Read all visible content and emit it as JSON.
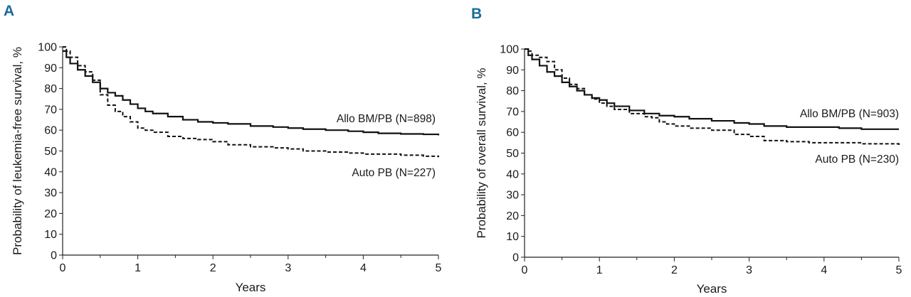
{
  "chart_data": [
    {
      "type": "line",
      "panel_label": "A",
      "title": "",
      "xlabel": "Years",
      "ylabel": "Probability of leukemia-free survival, %",
      "xlim": [
        0,
        5
      ],
      "ylim": [
        0,
        100
      ],
      "xticks": [
        0,
        1,
        2,
        3,
        4,
        5
      ],
      "yticks": [
        0,
        10,
        20,
        30,
        40,
        50,
        60,
        70,
        80,
        90,
        100
      ],
      "grid": false,
      "series": [
        {
          "name": "Allo BM/PB (N=898)",
          "style": "solid",
          "x": [
            0,
            0.05,
            0.1,
            0.2,
            0.3,
            0.4,
            0.5,
            0.6,
            0.7,
            0.8,
            0.9,
            1.0,
            1.1,
            1.2,
            1.4,
            1.6,
            1.8,
            2.0,
            2.2,
            2.5,
            2.8,
            3.0,
            3.2,
            3.5,
            3.8,
            4.0,
            4.2,
            4.5,
            4.8,
            5.0
          ],
          "y": [
            98,
            95,
            92,
            89,
            86,
            83,
            80,
            78,
            76.5,
            74.5,
            72.5,
            70.5,
            69,
            68,
            66.5,
            65,
            64,
            63.5,
            63,
            62,
            61.5,
            61,
            60.5,
            60,
            59.5,
            59,
            58.5,
            58.2,
            58,
            57.5
          ]
        },
        {
          "name": "Auto PB (N=227)",
          "style": "dashed",
          "x": [
            0,
            0.05,
            0.1,
            0.2,
            0.3,
            0.4,
            0.5,
            0.6,
            0.7,
            0.8,
            0.9,
            1.0,
            1.1,
            1.2,
            1.4,
            1.6,
            1.8,
            2.0,
            2.2,
            2.5,
            2.8,
            3.0,
            3.2,
            3.5,
            3.8,
            4.0,
            4.2,
            4.5,
            4.8,
            5.0
          ],
          "y": [
            100,
            98,
            95,
            91,
            88,
            84,
            77,
            72,
            69,
            66.5,
            64,
            61,
            60,
            59,
            57,
            56,
            55.5,
            54.5,
            53,
            52,
            51.5,
            51,
            50,
            49.5,
            49,
            48.5,
            48.5,
            48,
            47.5,
            47
          ]
        }
      ]
    },
    {
      "type": "line",
      "panel_label": "B",
      "title": "",
      "xlabel": "Years",
      "ylabel": "Probability of overall survival, %",
      "xlim": [
        0,
        5
      ],
      "ylim": [
        0,
        100
      ],
      "xticks": [
        0,
        1,
        2,
        3,
        4,
        5
      ],
      "yticks": [
        0,
        10,
        20,
        30,
        40,
        50,
        60,
        70,
        80,
        90,
        100
      ],
      "grid": false,
      "series": [
        {
          "name": "Allo BM/PB (N=903)",
          "style": "solid",
          "x": [
            0,
            0.05,
            0.1,
            0.2,
            0.3,
            0.4,
            0.5,
            0.6,
            0.7,
            0.8,
            0.9,
            1.0,
            1.1,
            1.2,
            1.4,
            1.6,
            1.8,
            2.0,
            2.2,
            2.5,
            2.8,
            3.0,
            3.2,
            3.5,
            3.8,
            4.0,
            4.2,
            4.5,
            4.8,
            5.0
          ],
          "y": [
            100,
            97,
            95,
            92,
            89,
            87,
            84,
            82,
            80,
            78,
            76.5,
            75.5,
            74,
            72.5,
            70.5,
            69,
            68,
            67.5,
            66.5,
            65.5,
            64.5,
            64,
            63,
            62.5,
            62.5,
            62.5,
            62,
            61.5,
            61.5,
            61.5
          ]
        },
        {
          "name": "Auto PB (N=230)",
          "style": "dashed",
          "x": [
            0,
            0.05,
            0.1,
            0.2,
            0.3,
            0.4,
            0.5,
            0.6,
            0.7,
            0.8,
            0.9,
            1.0,
            1.1,
            1.2,
            1.4,
            1.6,
            1.7,
            1.8,
            1.9,
            2.0,
            2.2,
            2.5,
            2.8,
            3.0,
            3.2,
            3.5,
            3.8,
            4.0,
            4.2,
            4.5,
            4.8,
            5.0
          ],
          "y": [
            100,
            99,
            97,
            96,
            94,
            90,
            86,
            83,
            81,
            78,
            76,
            74,
            72.5,
            71,
            69,
            67.5,
            67,
            65,
            64,
            63,
            62,
            61,
            59,
            58,
            56,
            55.5,
            55,
            55,
            55,
            54.5,
            54.5,
            53
          ]
        }
      ]
    }
  ]
}
